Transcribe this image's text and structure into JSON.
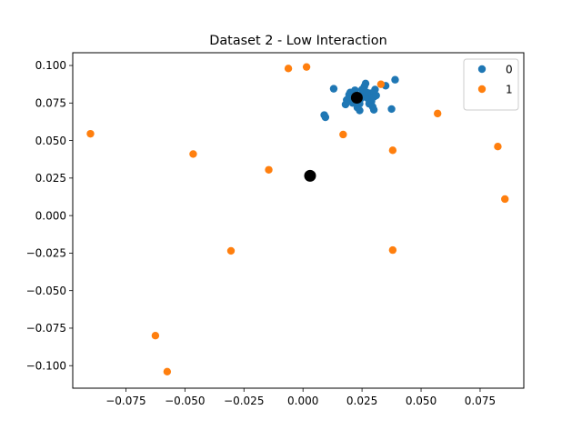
{
  "chart_data": {
    "type": "scatter",
    "title": "Dataset 2 - Low Interaction",
    "xlabel": "",
    "ylabel": "",
    "xlim": [
      -0.0975,
      0.0935
    ],
    "ylim": [
      -0.115,
      0.1085
    ],
    "x_ticks": [
      -0.075,
      -0.05,
      -0.025,
      0.0,
      0.025,
      0.05,
      0.075
    ],
    "x_tick_labels": [
      "−0.075",
      "−0.050",
      "−0.025",
      "0.000",
      "0.025",
      "0.050",
      "0.075"
    ],
    "y_ticks": [
      0.1,
      0.075,
      0.05,
      0.025,
      0.0,
      -0.025,
      -0.05,
      -0.075,
      -0.1
    ],
    "y_tick_labels": [
      "0.100",
      "0.075",
      "0.050",
      "0.025",
      "0.000",
      "−0.025",
      "−0.050",
      "−0.075",
      "−0.100"
    ],
    "grid": false,
    "legend_position": "top-right",
    "series": [
      {
        "name": "0",
        "color": "#1f77b4",
        "points": [
          [
            0.0235,
            0.08
          ],
          [
            0.0245,
            0.078
          ],
          [
            0.0255,
            0.0825
          ],
          [
            0.0225,
            0.0765
          ],
          [
            0.0265,
            0.079
          ],
          [
            0.0215,
            0.081
          ],
          [
            0.0275,
            0.078
          ],
          [
            0.024,
            0.0745
          ],
          [
            0.0205,
            0.0785
          ],
          [
            0.0285,
            0.0815
          ],
          [
            0.0195,
            0.0805
          ],
          [
            0.026,
            0.086
          ],
          [
            0.023,
            0.072
          ],
          [
            0.029,
            0.076
          ],
          [
            0.0185,
            0.077
          ],
          [
            0.025,
            0.084
          ],
          [
            0.03,
            0.079
          ],
          [
            0.021,
            0.075
          ],
          [
            0.027,
            0.082
          ],
          [
            0.022,
            0.0835
          ],
          [
            0.028,
            0.0745
          ],
          [
            0.0295,
            0.0725
          ],
          [
            0.018,
            0.074
          ],
          [
            0.02,
            0.082
          ],
          [
            0.031,
            0.08
          ],
          [
            0.0265,
            0.088
          ],
          [
            0.024,
            0.07
          ],
          [
            0.03,
            0.0705
          ],
          [
            0.035,
            0.0865
          ],
          [
            0.039,
            0.0905
          ],
          [
            0.013,
            0.0845
          ],
          [
            0.0375,
            0.071
          ],
          [
            0.009,
            0.067
          ],
          [
            0.0095,
            0.0655
          ],
          [
            0.0305,
            0.084
          ]
        ]
      },
      {
        "name": "1",
        "color": "#ff7f0e",
        "points": [
          [
            -0.0062,
            0.098
          ],
          [
            0.0015,
            0.099
          ],
          [
            0.033,
            0.0875
          ],
          [
            0.057,
            0.068
          ],
          [
            -0.09,
            0.0545
          ],
          [
            -0.0465,
            0.041
          ],
          [
            -0.0145,
            0.0305
          ],
          [
            0.017,
            0.054
          ],
          [
            0.038,
            0.0435
          ],
          [
            0.0825,
            0.046
          ],
          [
            0.0855,
            0.011
          ],
          [
            -0.0305,
            -0.0235
          ],
          [
            0.038,
            -0.023
          ],
          [
            -0.0625,
            -0.08
          ],
          [
            -0.0575,
            -0.104
          ]
        ]
      },
      {
        "name": "",
        "color": "#000000",
        "marker_size": "large",
        "points": [
          [
            0.0228,
            0.0785
          ],
          [
            0.003,
            0.0265
          ]
        ]
      }
    ],
    "legend": [
      {
        "label": "0",
        "color": "#1f77b4"
      },
      {
        "label": "1",
        "color": "#ff7f0e"
      }
    ]
  }
}
